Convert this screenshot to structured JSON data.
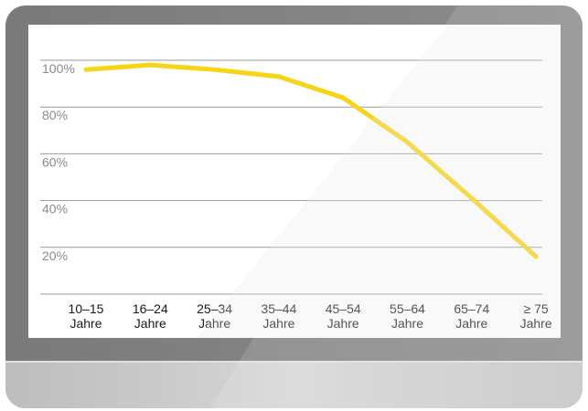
{
  "chart_data": {
    "type": "line",
    "categories": [
      [
        "10–15",
        "Jahre"
      ],
      [
        "16–24",
        "Jahre"
      ],
      [
        "25–34",
        "Jahre"
      ],
      [
        "35–44",
        "Jahre"
      ],
      [
        "45–54",
        "Jahre"
      ],
      [
        "55–64",
        "Jahre"
      ],
      [
        "65–74",
        "Jahre"
      ],
      [
        "≥ 75",
        "Jahre"
      ]
    ],
    "values": [
      96,
      98,
      96,
      93,
      84,
      65,
      41,
      16
    ],
    "ylim": [
      0,
      105
    ],
    "yticks": [
      20,
      40,
      60,
      80,
      100
    ],
    "ytick_labels": [
      "20%",
      "40%",
      "60%",
      "80%",
      "100%"
    ],
    "grid": true,
    "line_color": "#f7d417",
    "grid_color": "#9a9a9a"
  },
  "frame": {
    "bezel_color": "#7d7d7d",
    "chin_color": "#c8c8c8",
    "screen_color": "#ffffff"
  }
}
